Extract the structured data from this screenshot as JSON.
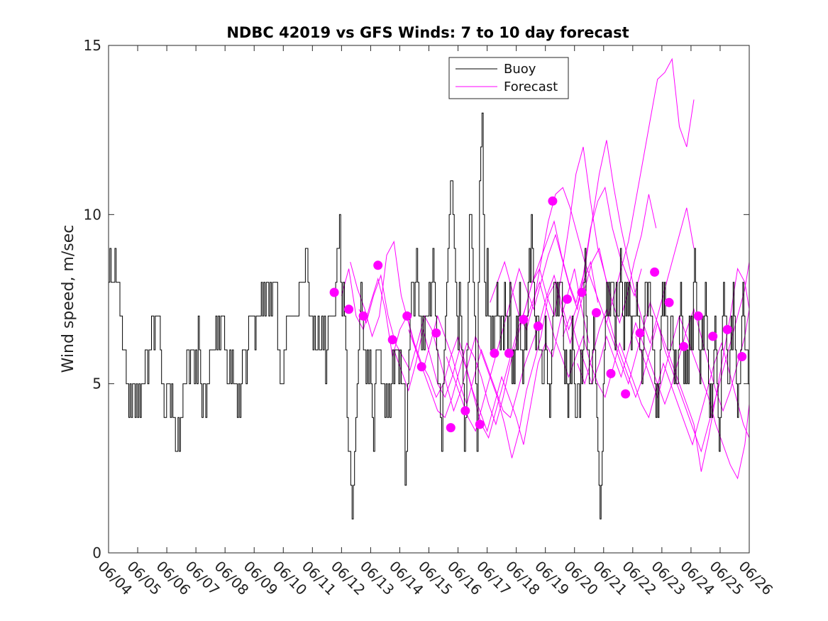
{
  "chart_data": {
    "type": "line",
    "title": "NDBC 42019 vs GFS Winds: 7 to 10 day forecast",
    "xlabel": "",
    "ylabel": "Wind speed, m/sec",
    "xlim": [
      "06/04",
      "06/26"
    ],
    "ylim": [
      0,
      15
    ],
    "grid": false,
    "legend_position": "top-center",
    "x_tick_labels": [
      "06/04",
      "06/05",
      "06/06",
      "06/07",
      "06/08",
      "06/09",
      "06/10",
      "06/11",
      "06/12",
      "06/13",
      "06/14",
      "06/15",
      "06/16",
      "06/17",
      "06/18",
      "06/19",
      "06/20",
      "06/21",
      "06/22",
      "06/23",
      "06/24",
      "06/25",
      "06/26"
    ],
    "y_ticks": [
      0,
      5,
      10,
      15
    ],
    "colors": {
      "buoy": "#000000",
      "forecast": "#ff00ff"
    },
    "series": [
      {
        "name": "Buoy",
        "style": "stairs",
        "x_start_day": 0,
        "x_end_day": 13.3,
        "x_step_days": 0.0417,
        "values": [
          8,
          9,
          8,
          8,
          8,
          9,
          8,
          8,
          8,
          7,
          7,
          6,
          6,
          6,
          5,
          5,
          4,
          5,
          4,
          5,
          5,
          4,
          5,
          4,
          5,
          4,
          5,
          5,
          5,
          6,
          6,
          5,
          6,
          6,
          7,
          7,
          6,
          7,
          7,
          7,
          7,
          6,
          5,
          5,
          4,
          4,
          5,
          5,
          5,
          4,
          5,
          4,
          4,
          3,
          3,
          4,
          3,
          4,
          4,
          5,
          5,
          5,
          6,
          6,
          5,
          6,
          6,
          6,
          5,
          6,
          5,
          7,
          6,
          5,
          4,
          5,
          5,
          4,
          5,
          5,
          6,
          6,
          6,
          6,
          6,
          7,
          6,
          7,
          6,
          7,
          7,
          7,
          6,
          6,
          5,
          5,
          6,
          5,
          6,
          5,
          5,
          5,
          4,
          5,
          4,
          5,
          6,
          6,
          6,
          5,
          6,
          7,
          7,
          7,
          7,
          7,
          6,
          7,
          7,
          7,
          7,
          8,
          7,
          8,
          7,
          8,
          8,
          7,
          8,
          7,
          8,
          8,
          8,
          8,
          6,
          6,
          5,
          5,
          5,
          6,
          6,
          7,
          7,
          7,
          7,
          7,
          7,
          7,
          7,
          7,
          7,
          8,
          8,
          8,
          8,
          8,
          9,
          9,
          8,
          7,
          7,
          7,
          6,
          7,
          6,
          6,
          7,
          6,
          6,
          7,
          6,
          7,
          5,
          6,
          7,
          7,
          7,
          7,
          7,
          7,
          8,
          9,
          9,
          10,
          8,
          7,
          8,
          7,
          6,
          4,
          3,
          3,
          2,
          1,
          2,
          3,
          4,
          5,
          6,
          7,
          8,
          7,
          6,
          6,
          5,
          6,
          5,
          6,
          5,
          4,
          3,
          5,
          6,
          6,
          6,
          6,
          5,
          5,
          5,
          4,
          5,
          4,
          5,
          4,
          5,
          6,
          5,
          6,
          6,
          6,
          5,
          6,
          5,
          5,
          5,
          2,
          3,
          5,
          6,
          7,
          8,
          8,
          7,
          8,
          9,
          8,
          7,
          7,
          6,
          7,
          6,
          7,
          7,
          7,
          8,
          7,
          8,
          9,
          8,
          7,
          6,
          5,
          5,
          4,
          3,
          5,
          6,
          7,
          8,
          9,
          10,
          11,
          11,
          10,
          9,
          8,
          7,
          6,
          8,
          7,
          6,
          5,
          3,
          4,
          6,
          8,
          10,
          10,
          9,
          8,
          7,
          5,
          3,
          8,
          11,
          12,
          13,
          10,
          8,
          7,
          9,
          7,
          7,
          6,
          7,
          6,
          7
        ]
      },
      {
        "name": "Buoy",
        "style": "stairs",
        "x_start_day": 13.3,
        "x_end_day": 22,
        "x_step_days": 0.0417,
        "values": [
          7,
          8,
          7,
          7,
          6,
          7,
          7,
          6,
          8,
          7,
          7,
          6,
          7,
          8,
          6,
          5,
          6,
          5,
          6,
          7,
          6,
          7,
          8,
          6,
          6,
          5,
          6,
          7,
          6,
          7,
          8,
          9,
          8,
          10,
          9,
          8,
          7,
          6,
          7,
          7,
          6,
          6,
          6,
          5,
          5,
          6,
          7,
          6,
          5,
          5,
          4,
          5,
          6,
          7,
          8,
          8,
          7,
          8,
          7,
          8,
          8,
          8,
          7,
          6,
          5,
          6,
          5,
          4,
          5,
          6,
          5,
          7,
          6,
          5,
          4,
          4,
          5,
          5,
          4,
          6,
          5,
          6,
          8,
          9,
          7,
          6,
          6,
          5,
          5,
          5,
          6,
          7,
          6,
          5,
          4,
          3,
          2,
          1,
          2,
          3,
          5,
          6,
          7,
          8,
          7,
          8,
          7,
          8,
          8,
          8,
          7,
          6,
          8,
          7,
          7,
          8,
          9,
          8,
          7,
          6,
          8,
          7,
          8,
          7,
          8,
          7,
          6,
          7,
          7,
          7,
          7,
          8,
          7,
          7,
          6,
          6,
          5,
          6,
          7,
          8,
          8,
          7,
          8,
          8,
          7,
          7,
          6,
          6,
          5,
          4,
          5,
          4,
          5,
          6,
          7,
          8,
          7,
          8,
          7,
          7,
          6,
          6,
          6,
          7,
          7,
          6,
          5,
          6,
          5,
          5,
          6,
          7,
          8,
          7,
          6,
          5,
          6,
          5,
          6,
          5,
          7,
          6,
          7,
          6,
          8,
          9,
          8,
          7,
          7,
          6,
          5,
          6,
          7,
          6,
          7,
          8,
          7,
          6,
          5,
          4,
          5,
          4,
          5,
          6,
          7,
          6,
          5,
          4,
          3,
          4,
          6,
          7,
          8,
          7,
          7,
          6,
          5,
          5,
          6,
          7,
          6,
          8,
          7,
          6,
          5,
          4,
          5,
          5,
          6,
          7,
          8,
          7,
          6,
          6,
          6,
          5
        ]
      },
      {
        "name": "Forecast",
        "style": "ensemble",
        "runs": [
          {
            "x_start_day": 8.0,
            "values": [
              7.6,
              8.4,
              7.0,
              6.6,
              7.4,
              8.1,
              7.2,
              5.8,
              6.6,
              7.0,
              6.2,
              5.6,
              5.2,
              4.6,
              5.0,
              5.8,
              6.4,
              5.6,
              4.8,
              4.2,
              3.6,
              4.4,
              5.2,
              4.6,
              4.0,
              3.2,
              4.4,
              5.6,
              6.2,
              5.8,
              6.8,
              7.6,
              8.4,
              7.2,
              6.2
            ]
          },
          {
            "x_start_day": 8.3,
            "values": [
              8.6,
              7.8,
              7.2,
              6.4,
              7.0,
              8.8,
              9.2,
              7.6,
              6.8,
              6.0,
              5.4,
              6.2,
              7.0,
              6.4,
              5.8,
              5.0,
              4.4,
              5.2,
              6.0,
              5.4,
              4.8,
              4.2,
              4.0,
              4.8,
              5.6,
              6.2,
              6.8,
              7.6,
              8.2,
              7.4,
              6.6,
              7.2,
              8.0,
              8.6,
              7.4
            ]
          },
          {
            "x_start_day": 8.6,
            "values": [
              7.2,
              6.8,
              7.6,
              8.2,
              7.0,
              6.2,
              5.8,
              5.4,
              6.2,
              7.0,
              6.6,
              5.8,
              5.0,
              4.2,
              4.8,
              5.6,
              6.4,
              5.8,
              5.2,
              4.6,
              3.8,
              2.8,
              3.6,
              4.8,
              5.6,
              6.4,
              7.6,
              8.0,
              7.0,
              6.2,
              7.0,
              7.8,
              8.6,
              9.0,
              8.0
            ]
          },
          {
            "x_start_day": 9.8,
            "values": [
              6.0,
              5.4,
              4.8,
              5.6,
              6.6,
              5.8,
              5.0,
              4.6,
              5.2,
              6.0,
              5.4,
              4.6,
              3.8,
              3.4,
              4.2,
              5.0,
              5.8,
              6.6,
              7.2,
              8.0,
              8.6,
              9.2,
              9.8,
              8.8,
              8.0,
              7.4,
              8.2,
              9.6,
              10.4,
              10.8,
              9.6,
              8.8,
              8.2,
              7.6,
              8.4
            ]
          },
          {
            "x_start_day": 10.3,
            "values": [
              6.6,
              6.0,
              5.4,
              4.8,
              4.2,
              4.0,
              4.6,
              5.4,
              6.2,
              5.8,
              5.2,
              4.4,
              3.8,
              4.6,
              5.6,
              6.4,
              7.2,
              8.0,
              8.4,
              7.6,
              7.0,
              8.2,
              9.6,
              11.2,
              12.0,
              10.4,
              9.0,
              8.2,
              7.4,
              6.8,
              7.6,
              8.6,
              9.4,
              10.6,
              9.6
            ]
          },
          {
            "x_start_day": 11.6,
            "values": [
              5.8,
              5.2,
              4.6,
              4.0,
              3.6,
              4.4,
              5.2,
              6.0,
              6.8,
              7.6,
              8.4,
              7.8,
              7.2,
              8.0,
              8.8,
              9.4,
              8.6,
              7.8,
              7.2,
              8.4,
              9.8,
              11.2,
              12.2,
              10.8,
              9.6,
              8.6,
              7.6,
              6.8,
              6.2,
              7.0,
              7.8,
              8.6,
              9.4,
              10.2,
              9.0
            ]
          },
          {
            "x_start_day": 13.1,
            "values": [
              7.4,
              8.0,
              8.6,
              7.8,
              7.0,
              6.6,
              7.4,
              8.6,
              9.8,
              10.6,
              10.8,
              10.2,
              9.4,
              8.6,
              8.0,
              7.4,
              6.8,
              7.6,
              8.4,
              9.2,
              10.4,
              11.6,
              12.8,
              14.0,
              14.2,
              14.6,
              12.6,
              12.0,
              13.4
            ]
          },
          {
            "x_start_day": 14.3,
            "values": [
              6.8,
              7.4,
              8.0,
              7.2,
              6.4,
              5.8,
              5.2,
              5.8,
              6.4,
              5.6,
              5.0,
              4.6,
              5.4,
              6.2,
              5.6,
              5.0,
              4.4,
              4.0,
              4.8,
              5.6,
              5.0,
              4.4,
              3.8,
              3.2,
              4.0,
              4.8,
              5.6,
              6.2,
              5.4,
              4.6,
              3.8,
              3.4,
              2.8
            ]
          },
          {
            "x_start_day": 15.6,
            "values": [
              6.4,
              7.0,
              6.2,
              5.6,
              5.0,
              5.6,
              6.4,
              5.8,
              5.2,
              6.0,
              6.8,
              6.2,
              5.6,
              5.0,
              4.4,
              5.0,
              5.8,
              6.6,
              7.2,
              6.4,
              5.6,
              4.8,
              4.2,
              4.8,
              5.6,
              6.4,
              7.2,
              6.6,
              6.0,
              5.4
            ]
          },
          {
            "x_start_day": 16.1,
            "values": [
              5.6,
              5.0,
              5.8,
              6.6,
              7.2,
              6.4,
              5.8,
              5.2,
              4.6,
              5.2,
              6.0,
              6.8,
              6.2,
              5.6,
              5.0,
              4.4,
              3.8,
              2.4,
              3.4,
              4.6,
              5.8,
              7.0,
              8.4,
              8.0,
              7.2,
              6.4,
              5.6,
              5.0,
              4.2,
              3.6,
              3.8
            ]
          },
          {
            "x_start_day": 17.1,
            "values": [
              6.8,
              6.2,
              5.6,
              5.0,
              5.8,
              6.6,
              7.4,
              6.8,
              6.0,
              5.4,
              4.8,
              4.2,
              3.6,
              3.0,
              3.8,
              4.6,
              5.4,
              6.2,
              7.0,
              7.8,
              8.6,
              9.4,
              8.6,
              7.8,
              7.0,
              7.6,
              8.4,
              9.2,
              10.2,
              10.9
            ]
          },
          {
            "x_start_day": 18.1,
            "values": [
              6.4,
              5.8,
              5.2,
              4.6,
              5.4,
              6.2,
              7.0,
              6.4,
              5.8,
              5.2,
              4.6,
              3.8,
              3.2,
              2.6,
              2.2,
              3.2,
              4.4,
              5.6,
              6.8,
              6.2,
              5.4,
              4.6,
              3.8,
              3.6,
              4.4,
              5.2,
              6.0,
              6.8,
              7.6
            ]
          }
        ]
      },
      {
        "name": "Forecast",
        "style": "markers",
        "x": [
          "06/11 18:00",
          "06/12 06:00",
          "06/12 18:00",
          "06/13 06:00",
          "06/13 18:00",
          "06/14 06:00",
          "06/14 18:00",
          "06/15 06:00",
          "06/15 18:00",
          "06/16 06:00",
          "06/16 18:00",
          "06/17 06:00",
          "06/17 18:00",
          "06/18 06:00",
          "06/18 18:00",
          "06/19 06:00",
          "06/19 18:00",
          "06/20 06:00",
          "06/20 18:00",
          "06/21 06:00",
          "06/21 18:00",
          "06/22 06:00",
          "06/22 18:00",
          "06/23 06:00",
          "06/23 18:00",
          "06/24 06:00",
          "06/24 18:00",
          "06/25 06:00",
          "06/25 18:00"
        ],
        "values": [
          7.7,
          7.2,
          7.0,
          8.5,
          6.3,
          7.0,
          5.5,
          6.5,
          3.7,
          4.2,
          3.8,
          5.9,
          5.9,
          6.9,
          6.7,
          10.4,
          7.5,
          7.7,
          7.1,
          5.3,
          4.7,
          6.5,
          8.3,
          7.4,
          6.1,
          7.0,
          6.4,
          6.6,
          5.8
        ]
      }
    ]
  }
}
